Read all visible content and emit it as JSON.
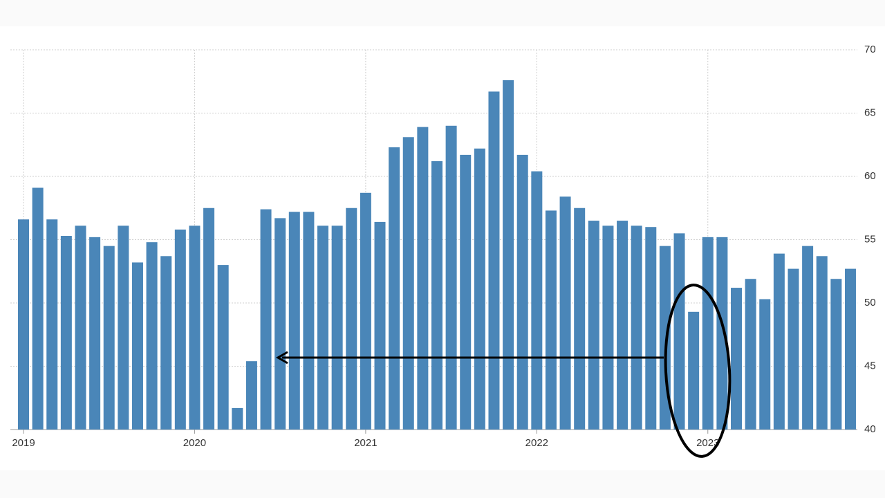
{
  "chart_data": {
    "type": "bar",
    "categories": [
      "2019",
      null,
      null,
      null,
      null,
      null,
      null,
      null,
      null,
      null,
      null,
      null,
      "2020",
      null,
      null,
      null,
      null,
      null,
      null,
      null,
      null,
      null,
      null,
      null,
      "2021",
      null,
      null,
      null,
      null,
      null,
      null,
      null,
      null,
      null,
      null,
      null,
      "2022",
      null,
      null,
      null,
      null,
      null,
      null,
      null,
      null,
      null,
      null,
      null,
      "2023",
      null,
      null,
      null,
      null,
      null,
      null,
      null,
      null,
      null,
      null
    ],
    "values": [
      56.6,
      59.1,
      56.6,
      55.3,
      56.1,
      55.2,
      54.5,
      56.1,
      53.2,
      54.8,
      53.7,
      55.8,
      56.1,
      57.5,
      53.0,
      41.7,
      45.4,
      57.4,
      56.7,
      57.2,
      57.2,
      56.1,
      56.1,
      57.5,
      58.7,
      56.4,
      62.3,
      63.1,
      63.9,
      61.2,
      64.0,
      61.7,
      62.2,
      66.7,
      67.6,
      61.7,
      60.4,
      57.3,
      58.4,
      57.5,
      56.5,
      56.1,
      56.5,
      56.1,
      56.0,
      54.5,
      55.5,
      49.3,
      55.2,
      55.2,
      51.2,
      51.9,
      50.3,
      53.9,
      52.7,
      54.5,
      53.7,
      51.9,
      52.7
    ],
    "color": "#4a86b8",
    "ylim": [
      40,
      70
    ],
    "yticks": [
      40,
      45,
      50,
      55,
      60,
      65,
      70
    ],
    "grid": true
  }
}
